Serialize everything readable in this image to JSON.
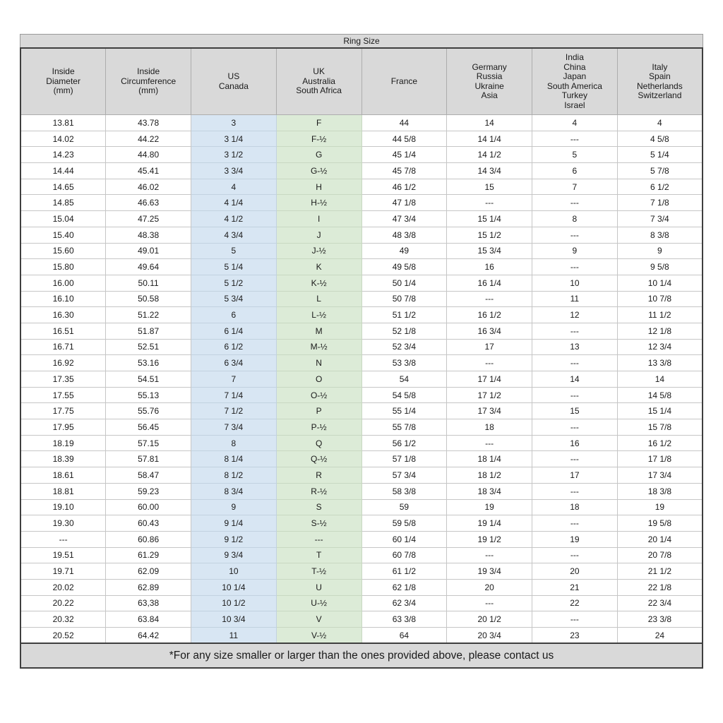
{
  "chart_data": {
    "type": "table",
    "title": "Ring Size",
    "footnote": "*For any size smaller or larger than the ones provided above, please contact us",
    "layout": {
      "highlighted_columns": {
        "us_canada": "blue",
        "uk_australia_south_africa": "green"
      },
      "grid": "on",
      "title_position": "top-center",
      "footnote_position": "bottom-center"
    },
    "colors": {
      "header_bg": "#d9d9d9",
      "us_column_bg": "#d8e6f3",
      "uk_column_bg": "#dcebd7",
      "outer_border": "#3f3f3f",
      "grid_line": "#c6c6c6",
      "text": "#1a1a1a",
      "page_bg": "#ffffff"
    },
    "columns": [
      {
        "id": "inside_diameter",
        "label": "Inside\nDiameter\n(mm)",
        "highlight": null
      },
      {
        "id": "inside_circumference",
        "label": "Inside\nCircumference\n(mm)",
        "highlight": null
      },
      {
        "id": "us_canada",
        "label": "US\nCanada",
        "highlight": "blue"
      },
      {
        "id": "uk_australia_south_africa",
        "label": "UK\nAustralia\nSouth Africa",
        "highlight": "green"
      },
      {
        "id": "france",
        "label": "France",
        "highlight": null
      },
      {
        "id": "germany_russia_ukraine_asia",
        "label": "Germany\nRussia\nUkraine\nAsia",
        "highlight": null
      },
      {
        "id": "india_china_japan_south_america_turkey_israel",
        "label": "India\nChina\nJapan\nSouth America\nTurkey\nIsrael",
        "highlight": null
      },
      {
        "id": "italy_spain_netherlands_switzerland",
        "label": "Italy\nSpain\nNetherlands\nSwitzerland",
        "highlight": null
      }
    ],
    "rows": [
      [
        "13.81",
        "43.78",
        "3",
        "F",
        "44",
        "14",
        "4",
        "4"
      ],
      [
        "14.02",
        "44.22",
        "3 1/4",
        "F-½",
        "44 5/8",
        "14 1/4",
        "---",
        "4 5/8"
      ],
      [
        "14.23",
        "44.80",
        "3 1/2",
        "G",
        "45 1/4",
        "14 1/2",
        "5",
        "5 1/4"
      ],
      [
        "14.44",
        "45.41",
        "3 3/4",
        "G-½",
        "45 7/8",
        "14 3/4",
        "6",
        "5 7/8"
      ],
      [
        "14.65",
        "46.02",
        "4",
        "H",
        "46 1/2",
        "15",
        "7",
        "6 1/2"
      ],
      [
        "14.85",
        "46.63",
        "4 1/4",
        "H-½",
        "47 1/8",
        "---",
        "---",
        "7 1/8"
      ],
      [
        "15.04",
        "47.25",
        "4 1/2",
        "I",
        "47 3/4",
        "15 1/4",
        "8",
        "7 3/4"
      ],
      [
        "15.40",
        "48.38",
        "4 3/4",
        "J",
        "48 3/8",
        "15 1/2",
        "---",
        "8 3/8"
      ],
      [
        "15.60",
        "49.01",
        "5",
        "J-½",
        "49",
        "15 3/4",
        "9",
        "9"
      ],
      [
        "15.80",
        "49.64",
        "5 1/4",
        "K",
        "49 5/8",
        "16",
        "---",
        "9 5/8"
      ],
      [
        "16.00",
        "50.11",
        "5 1/2",
        "K-½",
        "50 1/4",
        "16 1/4",
        "10",
        "10 1/4"
      ],
      [
        "16.10",
        "50.58",
        "5 3/4",
        "L",
        "50 7/8",
        "---",
        "11",
        "10 7/8"
      ],
      [
        "16.30",
        "51.22",
        "6",
        "L-½",
        "51 1/2",
        "16 1/2",
        "12",
        "11 1/2"
      ],
      [
        "16.51",
        "51.87",
        "6 1/4",
        "M",
        "52 1/8",
        "16 3/4",
        "---",
        "12 1/8"
      ],
      [
        "16.71",
        "52.51",
        "6 1/2",
        "M-½",
        "52 3/4",
        "17",
        "13",
        "12 3/4"
      ],
      [
        "16.92",
        "53.16",
        "6 3/4",
        "N",
        "53 3/8",
        "---",
        "---",
        "13 3/8"
      ],
      [
        "17.35",
        "54.51",
        "7",
        "O",
        "54",
        "17 1/4",
        "14",
        "14"
      ],
      [
        "17.55",
        "55.13",
        "7 1/4",
        "O-½",
        "54 5/8",
        "17 1/2",
        "---",
        "14 5/8"
      ],
      [
        "17.75",
        "55.76",
        "7 1/2",
        "P",
        "55 1/4",
        "17 3/4",
        "15",
        "15 1/4"
      ],
      [
        "17.95",
        "56.45",
        "7 3/4",
        "P-½",
        "55 7/8",
        "18",
        "---",
        "15 7/8"
      ],
      [
        "18.19",
        "57.15",
        "8",
        "Q",
        "56 1/2",
        "---",
        "16",
        "16 1/2"
      ],
      [
        "18.39",
        "57.81",
        "8 1/4",
        "Q-½",
        "57 1/8",
        "18 1/4",
        "---",
        "17 1/8"
      ],
      [
        "18.61",
        "58.47",
        "8 1/2",
        "R",
        "57 3/4",
        "18 1/2",
        "17",
        "17 3/4"
      ],
      [
        "18.81",
        "59.23",
        "8 3/4",
        "R-½",
        "58 3/8",
        "18 3/4",
        "---",
        "18 3/8"
      ],
      [
        "19.10",
        "60.00",
        "9",
        "S",
        "59",
        "19",
        "18",
        "19"
      ],
      [
        "19.30",
        "60.43",
        "9 1/4",
        "S-½",
        "59 5/8",
        "19 1/4",
        "---",
        "19 5/8"
      ],
      [
        "---",
        "60.86",
        "9 1/2",
        "---",
        "60 1/4",
        "19 1/2",
        "19",
        "20 1/4"
      ],
      [
        "19.51",
        "61.29",
        "9 3/4",
        "T",
        "60 7/8",
        "---",
        "---",
        "20 7/8"
      ],
      [
        "19.71",
        "62.09",
        "10",
        "T-½",
        "61 1/2",
        "19 3/4",
        "20",
        "21 1/2"
      ],
      [
        "20.02",
        "62.89",
        "10 1/4",
        "U",
        "62 1/8",
        "20",
        "21",
        "22 1/8"
      ],
      [
        "20.22",
        "63,38",
        "10 1/2",
        "U-½",
        "62 3/4",
        "---",
        "22",
        "22 3/4"
      ],
      [
        "20.32",
        "63.84",
        "10 3/4",
        "V",
        "63 3/8",
        "20 1/2",
        "---",
        "23 3/8"
      ],
      [
        "20.52",
        "64.42",
        "11",
        "V-½",
        "64",
        "20 3/4",
        "23",
        "24"
      ]
    ]
  }
}
